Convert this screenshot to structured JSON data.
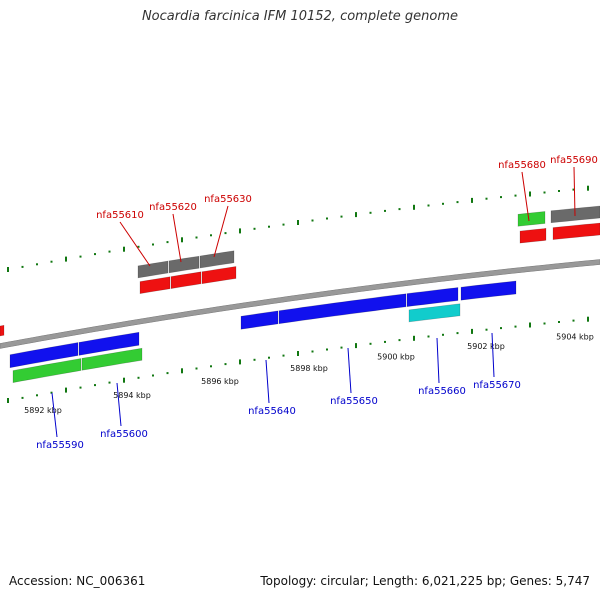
{
  "title": "Nocardia farcinica IFM 10152, complete genome",
  "footer": {
    "accession": "Accession: NC_006361",
    "summary": "Topology: circular; Length: 6,021,225 bp; Genes: 5,747"
  },
  "colors": {
    "forward_label": "#cc0000",
    "reverse_label": "#0000cc",
    "red_gene": "#ee1111",
    "gray_gene": "#6a6a6a",
    "green_gene": "#33cc33",
    "blue_gene": "#1111ee",
    "cyan_gene": "#11cccc",
    "tick": "#117711",
    "backbone": "#999999"
  },
  "scale": {
    "ticks": [
      "5892 kbp",
      "5894 kbp",
      "5896 kbp",
      "5898 kbp",
      "5900 kbp",
      "5902 kbp",
      "5904 kbp"
    ]
  },
  "forward_genes": [
    {
      "name": "nfa55610"
    },
    {
      "name": "nfa55620"
    },
    {
      "name": "nfa55630"
    },
    {
      "name": "nfa55680"
    },
    {
      "name": "nfa55690"
    }
  ],
  "reverse_genes": [
    {
      "name": "nfa55590"
    },
    {
      "name": "nfa55600"
    },
    {
      "name": "nfa55640"
    },
    {
      "name": "nfa55650"
    },
    {
      "name": "nfa55660"
    },
    {
      "name": "nfa55670"
    }
  ]
}
